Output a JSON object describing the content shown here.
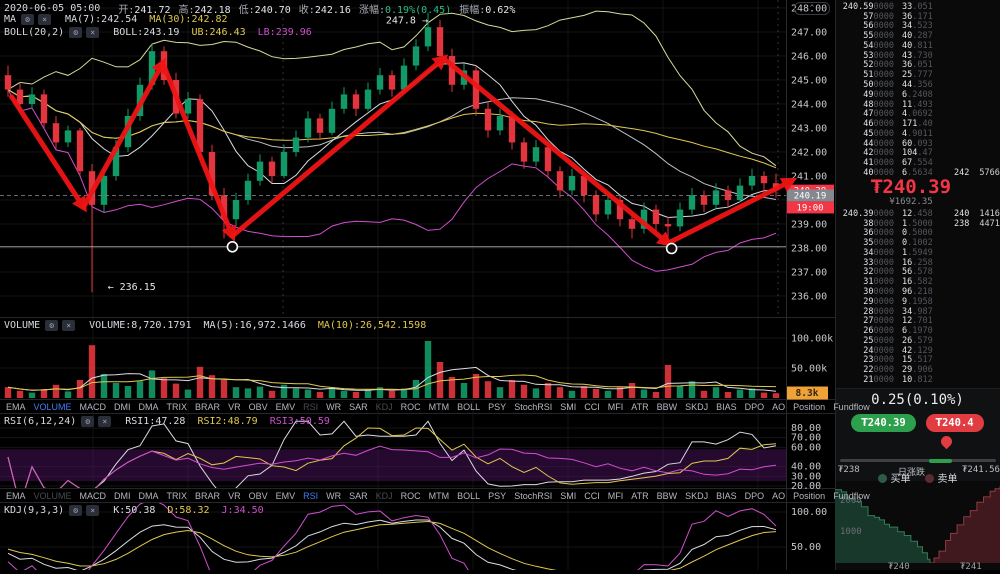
{
  "header": {
    "datetime": "2020-06-05 05:00",
    "fields": [
      {
        "label": "开:",
        "value": "241.72",
        "color": "#e2e4e9"
      },
      {
        "label": "高:",
        "value": "242.18",
        "color": "#e2e4e9"
      },
      {
        "label": "低:",
        "value": "240.70",
        "color": "#e2e4e9"
      },
      {
        "label": "收:",
        "value": "242.16",
        "color": "#e2e4e9"
      },
      {
        "label": "涨幅:",
        "value": "0.19%(0.45)",
        "color": "#2ebd85"
      },
      {
        "label": "振幅:",
        "value": "0.62%",
        "color": "#e2e4e9"
      }
    ]
  },
  "ma_row": {
    "name": "MA",
    "items": [
      {
        "label": "MA(7):",
        "value": "242.54",
        "color": "#d9dce3"
      },
      {
        "label": "MA(30):",
        "value": "242.82",
        "color": "#e0c84f"
      }
    ]
  },
  "boll_row": {
    "name": "BOLL(20,2)",
    "items": [
      {
        "label": "BOLL:",
        "value": "243.19",
        "color": "#d9dce3"
      },
      {
        "label": "UB:",
        "value": "246.43",
        "color": "#e0c84f"
      },
      {
        "label": "LB:",
        "value": "239.96",
        "color": "#cf4fcf"
      }
    ]
  },
  "volume_row": {
    "name": "VOLUME",
    "items": [
      {
        "label": "VOLUME:",
        "value": "8,720.1791",
        "color": "#d9dce3"
      },
      {
        "label": "MA(5):",
        "value": "16,972.1466",
        "color": "#d9dce3"
      },
      {
        "label": "MA(10):",
        "value": "26,542.1598",
        "color": "#e0c84f"
      }
    ]
  },
  "rsi_row": {
    "name": "RSI(6,12,24)",
    "items": [
      {
        "label": "RSI1:",
        "value": "47.28",
        "color": "#d9dce3"
      },
      {
        "label": "RSI2:",
        "value": "48.79",
        "color": "#e0c84f"
      },
      {
        "label": "RSI3:",
        "value": "50.59",
        "color": "#cf4fcf"
      }
    ]
  },
  "kdj_row": {
    "name": "KDJ(9,3,3)",
    "items": [
      {
        "label": "K:",
        "value": "50.38",
        "color": "#d9dce3"
      },
      {
        "label": "D:",
        "value": "58.32",
        "color": "#e0c84f"
      },
      {
        "label": "J:",
        "value": "34.50",
        "color": "#cf4fcf"
      }
    ]
  },
  "tabs_row1": [
    {
      "label": "EMA"
    },
    {
      "label": "VOLUME",
      "state": "active"
    },
    {
      "label": "MACD"
    },
    {
      "label": "DMI"
    },
    {
      "label": "DMA"
    },
    {
      "label": "TRIX"
    },
    {
      "label": "BRAR"
    },
    {
      "label": "VR"
    },
    {
      "label": "OBV"
    },
    {
      "label": "EMV"
    },
    {
      "label": "RSI",
      "state": "dim"
    },
    {
      "label": "WR"
    },
    {
      "label": "SAR"
    },
    {
      "label": "KDJ",
      "state": "dim"
    },
    {
      "label": "ROC"
    },
    {
      "label": "MTM"
    },
    {
      "label": "BOLL"
    },
    {
      "label": "PSY"
    },
    {
      "label": "StochRSI"
    },
    {
      "label": "SMI"
    },
    {
      "label": "CCI"
    },
    {
      "label": "MFI"
    },
    {
      "label": "ATR"
    },
    {
      "label": "BBW"
    },
    {
      "label": "SKDJ"
    },
    {
      "label": "BIAS"
    },
    {
      "label": "DPO"
    },
    {
      "label": "AO"
    },
    {
      "label": "Position"
    },
    {
      "label": "Fundflow"
    }
  ],
  "tabs_row2": [
    {
      "label": "EMA"
    },
    {
      "label": "VOLUME",
      "state": "dim"
    },
    {
      "label": "MACD"
    },
    {
      "label": "DMI"
    },
    {
      "label": "DMA"
    },
    {
      "label": "TRIX"
    },
    {
      "label": "BRAR"
    },
    {
      "label": "VR"
    },
    {
      "label": "OBV"
    },
    {
      "label": "EMV"
    },
    {
      "label": "RSI",
      "state": "active"
    },
    {
      "label": "WR"
    },
    {
      "label": "SAR"
    },
    {
      "label": "KDJ",
      "state": "dim"
    },
    {
      "label": "ROC"
    },
    {
      "label": "MTM"
    },
    {
      "label": "BOLL"
    },
    {
      "label": "PSY"
    },
    {
      "label": "StochRSI"
    },
    {
      "label": "SMI"
    },
    {
      "label": "CCI"
    },
    {
      "label": "MFI"
    },
    {
      "label": "ATR"
    },
    {
      "label": "BBW"
    },
    {
      "label": "SKDJ"
    },
    {
      "label": "BIAS"
    },
    {
      "label": "DPO"
    },
    {
      "label": "AO"
    },
    {
      "label": "Position"
    },
    {
      "label": "Fundflow"
    }
  ],
  "axis_chip": "^",
  "chart_data": {
    "type": "candlestick",
    "title": "",
    "panes": [
      "price+MA+BOLL",
      "volume",
      "RSI(6,12,24)",
      "KDJ(9,3,3)"
    ],
    "ylim_price": [
      236,
      248
    ],
    "colors": {
      "up": "#119a67",
      "down": "#e3353d",
      "ma_fast": "#d9dce3",
      "ma_slow": "#e0c84f",
      "third": "#cf4fcf",
      "boll_ub": "#d6da9a",
      "boll_mid": "#bdbfc6",
      "arrow": "#f01515"
    },
    "axes": {
      "price_ticks": [
        "248.00",
        "247.00",
        "246.00",
        "245.00",
        "244.00",
        "243.00",
        "242.00",
        "241.00",
        "239.00",
        "238.00",
        "237.00",
        "236.00"
      ],
      "volume_ticks": [
        "100.00k",
        "50.00k"
      ],
      "volume_badge": "8.3k",
      "rsi_ticks": [
        "80.00",
        "70.00",
        "60.00",
        "40.00",
        "30.00",
        "20.00"
      ],
      "kdj_ticks": [
        "100.00",
        "50.00"
      ],
      "price_badge_last": "240.39",
      "price_badge_prev": "240.19",
      "countdown_badge": "19:00"
    },
    "candles": [
      [
        245.2,
        245.6,
        244.3,
        244.6
      ],
      [
        244.6,
        244.9,
        243.7,
        244.0
      ],
      [
        244.0,
        244.7,
        243.8,
        244.4
      ],
      [
        244.4,
        244.6,
        243.0,
        243.2
      ],
      [
        243.2,
        243.5,
        242.1,
        242.4
      ],
      [
        242.4,
        243.1,
        242.2,
        242.9
      ],
      [
        242.9,
        243.0,
        241.0,
        241.2
      ],
      [
        241.2,
        241.5,
        236.15,
        239.8
      ],
      [
        239.8,
        241.3,
        239.5,
        241.0
      ],
      [
        241.0,
        242.5,
        240.8,
        242.2
      ],
      [
        242.2,
        243.8,
        242.0,
        243.5
      ],
      [
        243.5,
        245.1,
        243.3,
        244.8
      ],
      [
        244.8,
        246.5,
        244.6,
        246.2
      ],
      [
        246.2,
        246.4,
        244.8,
        245.0
      ],
      [
        245.0,
        245.3,
        243.4,
        243.6
      ],
      [
        243.6,
        244.5,
        243.4,
        244.2
      ],
      [
        244.2,
        244.4,
        241.8,
        242.0
      ],
      [
        242.0,
        242.3,
        240.0,
        240.2
      ],
      [
        240.2,
        240.5,
        238.4,
        239.2
      ],
      [
        239.2,
        240.3,
        238.9,
        240.0
      ],
      [
        240.0,
        241.1,
        239.8,
        240.8
      ],
      [
        240.8,
        241.9,
        240.6,
        241.6
      ],
      [
        241.6,
        241.8,
        240.7,
        241.0
      ],
      [
        241.0,
        242.3,
        240.9,
        242.0
      ],
      [
        242.0,
        242.9,
        241.8,
        242.6
      ],
      [
        242.6,
        243.7,
        242.4,
        243.4
      ],
      [
        243.4,
        243.6,
        242.5,
        242.8
      ],
      [
        242.8,
        244.1,
        242.7,
        243.8
      ],
      [
        243.8,
        244.7,
        243.6,
        244.4
      ],
      [
        244.4,
        244.6,
        243.5,
        243.8
      ],
      [
        243.8,
        244.9,
        243.7,
        244.6
      ],
      [
        244.6,
        245.5,
        244.4,
        245.2
      ],
      [
        245.2,
        245.4,
        244.3,
        244.6
      ],
      [
        244.6,
        245.9,
        244.5,
        245.6
      ],
      [
        245.6,
        246.7,
        245.4,
        246.4
      ],
      [
        246.4,
        247.8,
        246.2,
        247.2
      ],
      [
        247.2,
        247.5,
        245.7,
        246.0
      ],
      [
        246.0,
        246.3,
        244.5,
        244.8
      ],
      [
        244.8,
        245.7,
        244.6,
        245.4
      ],
      [
        245.4,
        245.6,
        243.5,
        243.8
      ],
      [
        243.8,
        244.1,
        242.6,
        242.9
      ],
      [
        242.9,
        243.8,
        242.7,
        243.5
      ],
      [
        243.5,
        243.7,
        242.1,
        242.4
      ],
      [
        242.4,
        242.6,
        241.3,
        241.6
      ],
      [
        241.6,
        242.5,
        241.4,
        242.2
      ],
      [
        242.2,
        242.4,
        240.9,
        241.2
      ],
      [
        241.2,
        241.4,
        240.1,
        240.4
      ],
      [
        240.4,
        241.3,
        240.2,
        241.0
      ],
      [
        241.0,
        241.2,
        239.9,
        240.2
      ],
      [
        240.2,
        240.4,
        239.1,
        239.4
      ],
      [
        239.4,
        240.3,
        239.2,
        240.0
      ],
      [
        240.0,
        240.2,
        238.9,
        239.2
      ],
      [
        239.2,
        239.4,
        238.4,
        238.8
      ],
      [
        238.8,
        239.9,
        238.6,
        239.6
      ],
      [
        239.6,
        239.8,
        238.7,
        239.0
      ],
      [
        239.0,
        239.3,
        238.35,
        238.9
      ],
      [
        238.9,
        239.9,
        238.7,
        239.6
      ],
      [
        239.6,
        240.5,
        239.4,
        240.2
      ],
      [
        240.2,
        240.4,
        239.5,
        239.8
      ],
      [
        239.8,
        240.7,
        239.6,
        240.4
      ],
      [
        240.4,
        240.6,
        239.7,
        240.0
      ],
      [
        240.0,
        240.9,
        239.9,
        240.6
      ],
      [
        240.6,
        241.3,
        240.4,
        241.0
      ],
      [
        241.0,
        241.2,
        240.3,
        240.7
      ],
      [
        240.7,
        241.1,
        240.1,
        240.4
      ]
    ],
    "volumes_k": [
      18,
      12,
      9,
      15,
      22,
      11,
      30,
      88,
      40,
      25,
      20,
      28,
      46,
      33,
      24,
      14,
      52,
      38,
      30,
      18,
      16,
      19,
      12,
      22,
      16,
      14,
      10,
      18,
      12,
      10,
      14,
      18,
      12,
      16,
      30,
      95,
      60,
      35,
      25,
      40,
      28,
      18,
      30,
      22,
      16,
      25,
      18,
      12,
      20,
      15,
      12,
      18,
      25,
      14,
      10,
      55,
      20,
      28,
      12,
      18,
      10,
      14,
      16,
      9,
      8
    ],
    "annotations": {
      "arrows": [
        [
          0.3,
          244.3
        ],
        [
          6.3,
          239.7
        ],
        [
          12.9,
          245.7
        ],
        [
          18.7,
          238.5
        ],
        [
          36.3,
          245.9
        ],
        [
          55.0,
          238.2
        ],
        [
          65.3,
          240.8
        ]
      ],
      "circles": [
        [
          18.7,
          238.05
        ],
        [
          55.3,
          237.98
        ]
      ],
      "hline": 238.05,
      "dashed_hline": 240.19,
      "labels": [
        {
          "text": "← 236.15",
          "i": 8.3,
          "p": 236.25,
          "anchor": "start"
        },
        {
          "text": "247.8 →",
          "i": 35.0,
          "p": 247.35,
          "anchor": "end"
        }
      ]
    }
  },
  "order_book": {
    "current_price": "₮240.39",
    "cny": "¥1692.35",
    "asks": [
      {
        "price": "240.59",
        "qty": "33.051"
      },
      {
        "price": "57",
        "qty": "36.171"
      },
      {
        "price": "56",
        "qty": "34.523"
      },
      {
        "price": "55",
        "qty": "40.287"
      },
      {
        "price": "54",
        "qty": "40.811"
      },
      {
        "price": "53",
        "qty": "43.730"
      },
      {
        "price": "52",
        "qty": "36.051"
      },
      {
        "price": "51",
        "qty": "25.777"
      },
      {
        "price": "50",
        "qty": "44.356"
      },
      {
        "price": "49",
        "qty": "6.2408"
      },
      {
        "price": "48",
        "qty": "11.493"
      },
      {
        "price": "47",
        "qty": "4.0692"
      },
      {
        "price": "46",
        "qty": "171.40"
      },
      {
        "price": "45",
        "qty": "4.9011"
      },
      {
        "price": "44",
        "qty": "60.093"
      },
      {
        "price": "42",
        "qty": "104.47"
      },
      {
        "price": "41",
        "qty": "67.554"
      },
      {
        "price": "40",
        "qty": "6.5634",
        "x_price": "242",
        "x_qty": "5766."
      }
    ],
    "bids": [
      {
        "price": "240.39",
        "qty": "12.458",
        "x_price": "240",
        "x_qty": "1416."
      },
      {
        "price": "38",
        "qty": "1.5000",
        "x_price": "238",
        "x_qty": "4471"
      },
      {
        "price": "36",
        "qty": "0.5000"
      },
      {
        "price": "35",
        "qty": "0.1002"
      },
      {
        "price": "34",
        "qty": "1.5949"
      },
      {
        "price": "33",
        "qty": "16.258"
      },
      {
        "price": "32",
        "qty": "56.578"
      },
      {
        "price": "31",
        "qty": "16.582"
      },
      {
        "price": "30",
        "qty": "96.218"
      },
      {
        "price": "29",
        "qty": "9.1958"
      },
      {
        "price": "28",
        "qty": "34.987"
      },
      {
        "price": "27",
        "qty": "12.701"
      },
      {
        "price": "26",
        "qty": "6.1970"
      },
      {
        "price": "25",
        "qty": "26.579"
      },
      {
        "price": "24",
        "qty": "42.129"
      },
      {
        "price": "23",
        "qty": "15.517"
      },
      {
        "price": "22",
        "qty": "29.906"
      },
      {
        "price": "21",
        "qty": "10.812"
      }
    ]
  },
  "ticker": {
    "change": "0.25(0.10%)",
    "buy_pill": "₮240.39",
    "sell_pill": "₮240.4",
    "range_low": "₮238",
    "range_label": "日涨跌",
    "range_high": "₮241.56"
  },
  "depth": {
    "legend_buy": "买单",
    "legend_sell": "卖单",
    "buy_color": "#2c5c47",
    "sell_color": "#5c2c31",
    "y_ticks": [
      "2000",
      "1000"
    ],
    "x_labels": [
      "₮240",
      "₮241"
    ],
    "buy_points": [
      [
        0,
        2350
      ],
      [
        0.04,
        2280
      ],
      [
        0.07,
        2060
      ],
      [
        0.12,
        1980
      ],
      [
        0.16,
        1800
      ],
      [
        0.2,
        1520
      ],
      [
        0.24,
        1460
      ],
      [
        0.27,
        1380
      ],
      [
        0.3,
        1240
      ],
      [
        0.33,
        1150
      ],
      [
        0.38,
        1000
      ],
      [
        0.42,
        880
      ],
      [
        0.46,
        700
      ],
      [
        0.5,
        520
      ],
      [
        0.53,
        330
      ],
      [
        0.56,
        120
      ],
      [
        0.575,
        0
      ]
    ],
    "sell_points": [
      [
        0.575,
        0
      ],
      [
        0.6,
        160
      ],
      [
        0.63,
        380
      ],
      [
        0.67,
        720
      ],
      [
        0.7,
        950
      ],
      [
        0.74,
        1220
      ],
      [
        0.78,
        1480
      ],
      [
        0.82,
        1680
      ],
      [
        0.86,
        1950
      ],
      [
        0.9,
        2120
      ],
      [
        0.94,
        2300
      ],
      [
        0.97,
        2380
      ],
      [
        1,
        2460
      ]
    ]
  }
}
